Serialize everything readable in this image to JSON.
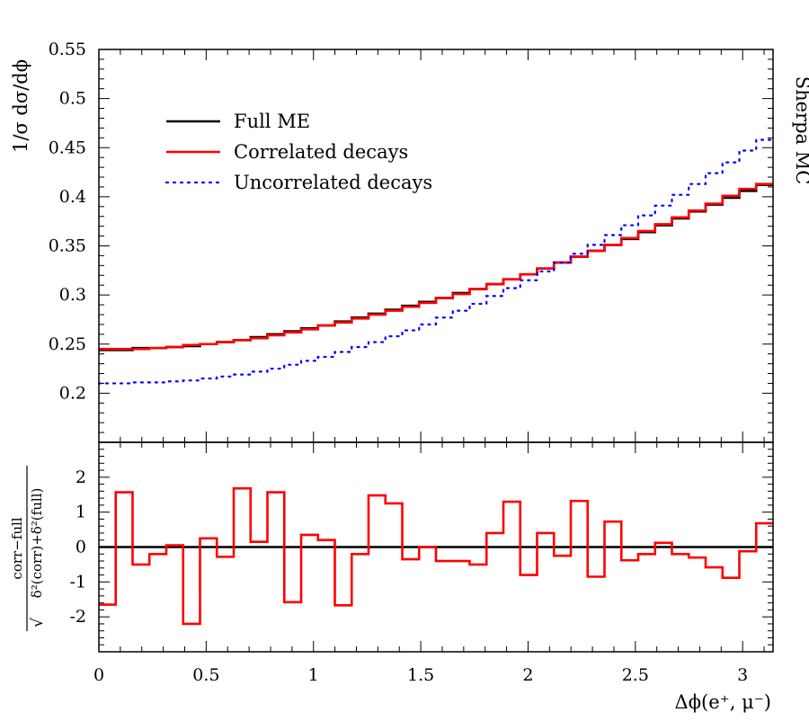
{
  "side_label": "Sherpa MC",
  "chart_data": [
    {
      "type": "line",
      "ylabel": "1/σ dσ/dϕ",
      "xlabel": "",
      "xlim": [
        0,
        3.1416
      ],
      "ylim": [
        0.15,
        0.55
      ],
      "yticks": [
        "0.2",
        "0.25",
        "0.3",
        "0.35",
        "0.4",
        "0.45",
        "0.5",
        "0.55"
      ],
      "legend_position": "top-left",
      "bins": 40,
      "series": [
        {
          "name": "Full ME",
          "color": "#000000",
          "style": "solid",
          "values": [
            0.244,
            0.244,
            0.246,
            0.246,
            0.247,
            0.248,
            0.25,
            0.252,
            0.254,
            0.257,
            0.26,
            0.263,
            0.266,
            0.269,
            0.273,
            0.277,
            0.281,
            0.285,
            0.289,
            0.293,
            0.297,
            0.302,
            0.306,
            0.311,
            0.316,
            0.321,
            0.327,
            0.333,
            0.339,
            0.345,
            0.351,
            0.357,
            0.364,
            0.371,
            0.378,
            0.385,
            0.392,
            0.399,
            0.406,
            0.412
          ]
        },
        {
          "name": "Correlated decays",
          "color": "#ff0000",
          "style": "solid",
          "values": [
            0.245,
            0.245,
            0.245,
            0.246,
            0.247,
            0.249,
            0.25,
            0.252,
            0.254,
            0.256,
            0.259,
            0.262,
            0.265,
            0.269,
            0.272,
            0.276,
            0.28,
            0.284,
            0.288,
            0.292,
            0.297,
            0.301,
            0.306,
            0.311,
            0.316,
            0.321,
            0.327,
            0.333,
            0.339,
            0.345,
            0.351,
            0.358,
            0.365,
            0.372,
            0.379,
            0.386,
            0.393,
            0.401,
            0.408,
            0.413
          ]
        },
        {
          "name": "Uncorrelated decays",
          "color": "#0000ff",
          "style": "dotted",
          "values": [
            0.21,
            0.21,
            0.211,
            0.211,
            0.212,
            0.213,
            0.215,
            0.217,
            0.219,
            0.222,
            0.225,
            0.229,
            0.233,
            0.237,
            0.242,
            0.247,
            0.252,
            0.258,
            0.264,
            0.27,
            0.277,
            0.284,
            0.291,
            0.299,
            0.307,
            0.315,
            0.324,
            0.333,
            0.342,
            0.351,
            0.361,
            0.371,
            0.381,
            0.391,
            0.402,
            0.413,
            0.424,
            0.435,
            0.447,
            0.458
          ]
        }
      ]
    },
    {
      "type": "line",
      "ylabel_numerator": "corr−full",
      "ylabel_denominator": "δ²(corr)+δ²(full)",
      "xlabel": "Δϕ(e⁺, μ⁻)",
      "xlim": [
        0,
        3.1416
      ],
      "ylim": [
        -3,
        3
      ],
      "xticks": [
        "0",
        "0.5",
        "1",
        "1.5",
        "2",
        "2.5",
        "3"
      ],
      "yticks": [
        "-2",
        "-1",
        "0",
        "1",
        "2"
      ],
      "reference_line": 0,
      "series": [
        {
          "name": "",
          "color": "#ff0000",
          "values": [
            -1.65,
            1.57,
            -0.5,
            -0.2,
            0.05,
            -2.2,
            0.25,
            -0.28,
            1.68,
            0.15,
            1.57,
            -1.58,
            0.35,
            0.2,
            -1.67,
            -0.2,
            1.48,
            1.25,
            -0.35,
            0.0,
            -0.4,
            -0.4,
            -0.5,
            0.4,
            1.3,
            -0.8,
            0.4,
            -0.25,
            1.32,
            -0.85,
            0.73,
            -0.38,
            -0.2,
            0.12,
            -0.2,
            -0.3,
            -0.58,
            -0.88,
            -0.12,
            0.68
          ]
        }
      ]
    }
  ]
}
